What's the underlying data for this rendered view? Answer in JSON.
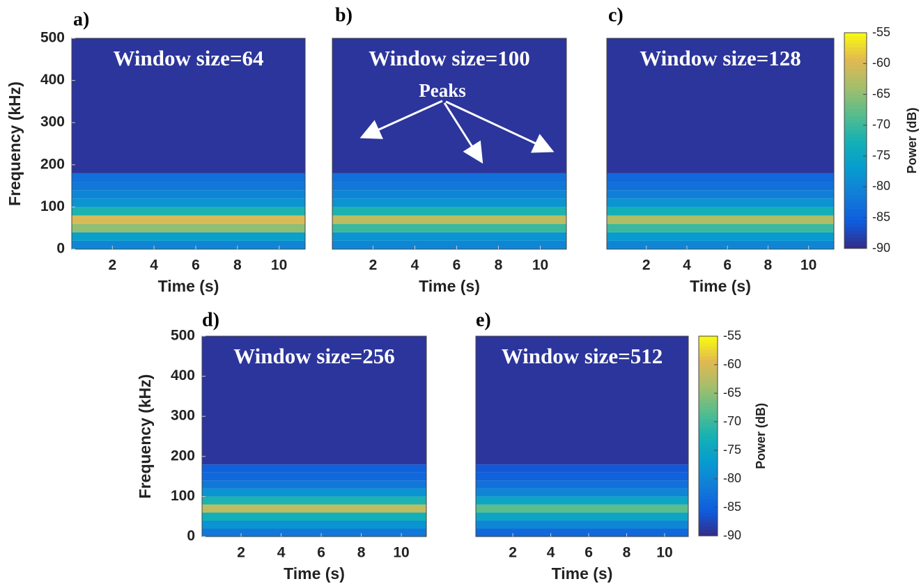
{
  "chart_data": [
    {
      "type": "heatmap",
      "panel_label": "a)",
      "title": "Window size=64",
      "xlabel": "Time (s)",
      "ylabel": "Frequency (kHz)",
      "xlim": [
        0.05,
        11.25
      ],
      "xticks": [
        2,
        4,
        6,
        8,
        10
      ],
      "ylim": [
        0,
        500
      ],
      "yticks": [
        0,
        100,
        200,
        300,
        400,
        500
      ],
      "frequency_bins": [
        0,
        20,
        40,
        60,
        80,
        100,
        120,
        140,
        160,
        180,
        500
      ],
      "power": [
        -80,
        -76,
        -65,
        -60,
        -72,
        -78,
        -80,
        -82,
        -83,
        -89
      ]
    },
    {
      "type": "heatmap",
      "panel_label": "b)",
      "title": "Window size=100",
      "xlabel": "Time (s)",
      "xlim": [
        0.05,
        11.25
      ],
      "xticks": [
        2,
        4,
        6,
        8,
        10
      ],
      "ylim": [
        0,
        500
      ],
      "frequency_bins": [
        0,
        20,
        40,
        60,
        80,
        100,
        120,
        140,
        160,
        180,
        500
      ],
      "power": [
        -80,
        -78,
        -70,
        -62,
        -72,
        -78,
        -80,
        -82,
        -83,
        -89
      ],
      "annotations": [
        "Peaks"
      ]
    },
    {
      "type": "heatmap",
      "panel_label": "c)",
      "title": "Window size=128",
      "xlabel": "Time (s)",
      "xlim": [
        0.05,
        11.25
      ],
      "xticks": [
        2,
        4,
        6,
        8,
        10
      ],
      "ylim": [
        0,
        500
      ],
      "frequency_bins": [
        0,
        20,
        40,
        60,
        80,
        100,
        120,
        140,
        160,
        180,
        500
      ],
      "power": [
        -80,
        -77,
        -70,
        -63,
        -73,
        -78,
        -81,
        -83,
        -84,
        -89
      ],
      "colorbar": {
        "label": "Power (dB)",
        "clim": [
          -90,
          -55
        ],
        "ticks": [
          -55,
          -60,
          -65,
          -70,
          -75,
          -80,
          -85,
          -90
        ],
        "colormap": "parula"
      }
    },
    {
      "type": "heatmap",
      "panel_label": "d)",
      "title": "Window size=256",
      "xlabel": "Time (s)",
      "ylabel": "Frequency (kHz)",
      "xlim": [
        0.05,
        11.25
      ],
      "xticks": [
        2,
        4,
        6,
        8,
        10
      ],
      "ylim": [
        0,
        500
      ],
      "yticks": [
        0,
        100,
        200,
        300,
        400,
        500
      ],
      "frequency_bins": [
        0,
        20,
        40,
        60,
        80,
        100,
        120,
        140,
        160,
        180,
        500
      ],
      "power": [
        -82,
        -78,
        -73,
        -62,
        -72,
        -78,
        -82,
        -84,
        -85,
        -89
      ]
    },
    {
      "type": "heatmap",
      "panel_label": "e)",
      "title": "Window size=512",
      "xlabel": "Time (s)",
      "xlim": [
        0.05,
        11.25
      ],
      "xticks": [
        2,
        4,
        6,
        8,
        10
      ],
      "ylim": [
        0,
        500
      ],
      "frequency_bins": [
        0,
        20,
        40,
        60,
        80,
        100,
        120,
        140,
        160,
        180,
        500
      ],
      "power": [
        -84,
        -80,
        -75,
        -68,
        -75,
        -80,
        -83,
        -85,
        -86,
        -89
      ],
      "colorbar": {
        "label": "Power (dB)",
        "clim": [
          -90,
          -55
        ],
        "ticks": [
          -55,
          -60,
          -65,
          -70,
          -75,
          -80,
          -85,
          -90
        ],
        "colormap": "parula"
      }
    }
  ]
}
